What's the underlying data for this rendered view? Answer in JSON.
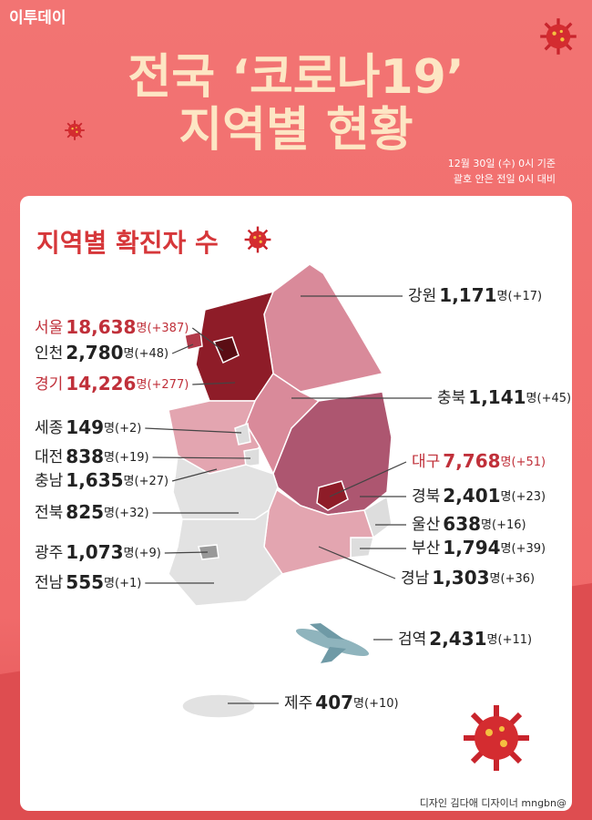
{
  "header": {
    "logo": "이투데이",
    "title_line1": "전국 ‘코로나19’",
    "title_line2": "지역별 현황",
    "note_line1": "12월 30일 (수) 0시 기준",
    "note_line2": "괄호 안은 전일 0시 대비"
  },
  "section_title": "지역별 확진자 수",
  "regions": [
    {
      "name": "강원",
      "count": "1,171",
      "unit": "명",
      "change": "(+17)",
      "color": "#222222"
    },
    {
      "name": "서울",
      "count": "18,638",
      "unit": "명",
      "change": "(+387)",
      "color": "#c0303a"
    },
    {
      "name": "인천",
      "count": "2,780",
      "unit": "명",
      "change": "(+48)",
      "color": "#222222"
    },
    {
      "name": "경기",
      "count": "14,226",
      "unit": "명",
      "change": "(+277)",
      "color": "#c0303a"
    },
    {
      "name": "충북",
      "count": "1,141",
      "unit": "명",
      "change": "(+45)",
      "color": "#222222"
    },
    {
      "name": "세종",
      "count": "149",
      "unit": "명",
      "change": "(+2)",
      "color": "#222222"
    },
    {
      "name": "대전",
      "count": "838",
      "unit": "명",
      "change": "(+19)",
      "color": "#222222"
    },
    {
      "name": "충남",
      "count": "1,635",
      "unit": "명",
      "change": "(+27)",
      "color": "#222222"
    },
    {
      "name": "대구",
      "count": "7,768",
      "unit": "명",
      "change": "(+51)",
      "color": "#c0303a"
    },
    {
      "name": "경북",
      "count": "2,401",
      "unit": "명",
      "change": "(+23)",
      "color": "#222222"
    },
    {
      "name": "전북",
      "count": "825",
      "unit": "명",
      "change": "(+32)",
      "color": "#222222"
    },
    {
      "name": "울산",
      "count": "638",
      "unit": "명",
      "change": "(+16)",
      "color": "#222222"
    },
    {
      "name": "부산",
      "count": "1,794",
      "unit": "명",
      "change": "(+39)",
      "color": "#222222"
    },
    {
      "name": "광주",
      "count": "1,073",
      "unit": "명",
      "change": "(+9)",
      "color": "#222222"
    },
    {
      "name": "경남",
      "count": "1,303",
      "unit": "명",
      "change": "(+36)",
      "color": "#222222"
    },
    {
      "name": "전남",
      "count": "555",
      "unit": "명",
      "change": "(+1)",
      "color": "#222222"
    },
    {
      "name": "검역",
      "count": "2,431",
      "unit": "명",
      "change": "(+11)",
      "color": "#222222"
    },
    {
      "name": "제주",
      "count": "407",
      "unit": "명",
      "change": "(+10)",
      "color": "#222222"
    }
  ],
  "footer": "디자인 김다애 디자이너 mngbn@"
}
